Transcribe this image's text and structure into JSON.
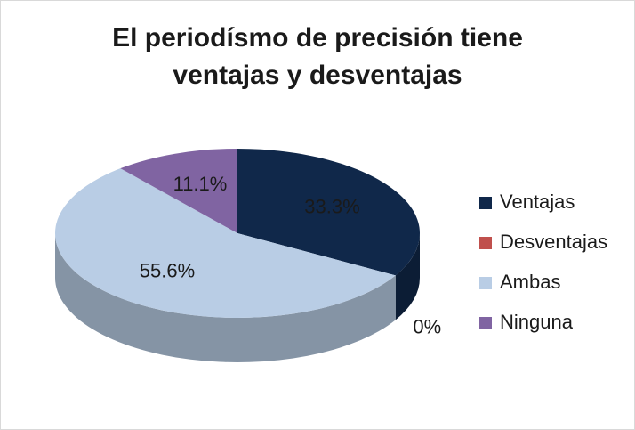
{
  "chart_data": {
    "type": "pie3d",
    "title": "El periodísmo de precisión tiene ventajas y desventajas",
    "categories": [
      "Ventajas",
      "Desventajas",
      "Ambas",
      "Ninguna"
    ],
    "values": [
      33.3,
      0,
      55.6,
      11.1
    ],
    "value_labels": [
      "33.3%",
      "0%",
      "55.6%",
      "11.1%"
    ],
    "colors": [
      "#10284a",
      "#c0504d",
      "#b9cde5",
      "#8064a2"
    ],
    "legend": "right"
  }
}
